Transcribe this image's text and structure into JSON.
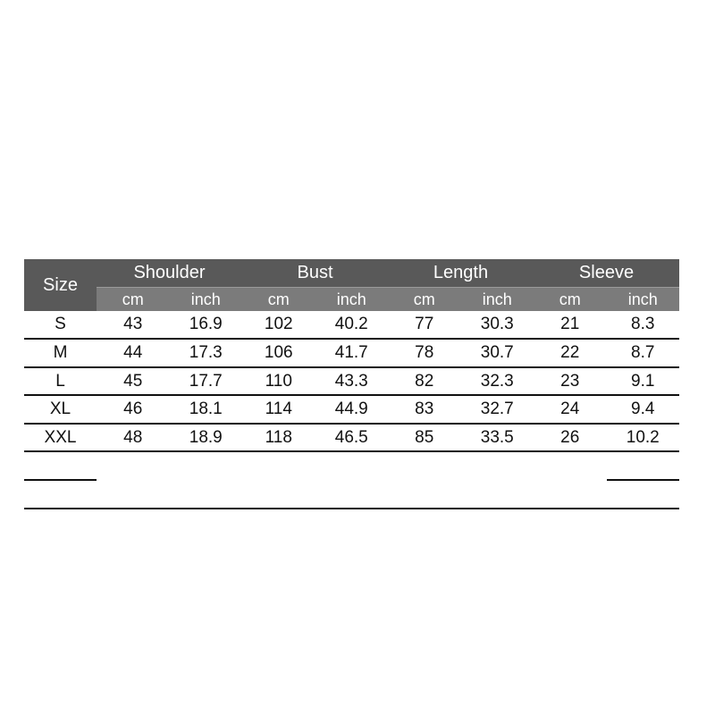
{
  "table": {
    "size_header": "Size",
    "groups": [
      "Shoulder",
      "Bust",
      "Length",
      "Sleeve"
    ],
    "units": [
      "cm",
      "inch",
      "cm",
      "inch",
      "cm",
      "inch",
      "cm",
      "inch"
    ],
    "rows": [
      [
        "S",
        43,
        16.9,
        102,
        40.2,
        77,
        30.3,
        21,
        8.3
      ],
      [
        "M",
        44,
        17.3,
        106,
        41.7,
        78,
        30.7,
        22,
        8.7
      ],
      [
        "L",
        45,
        17.7,
        110,
        43.3,
        82,
        32.3,
        23,
        9.1
      ],
      [
        "XL",
        46,
        18.1,
        114,
        44.9,
        83,
        32.7,
        24,
        9.4
      ],
      [
        "XXL",
        48,
        18.9,
        118,
        46.5,
        85,
        33.5,
        26,
        10.2
      ]
    ]
  }
}
